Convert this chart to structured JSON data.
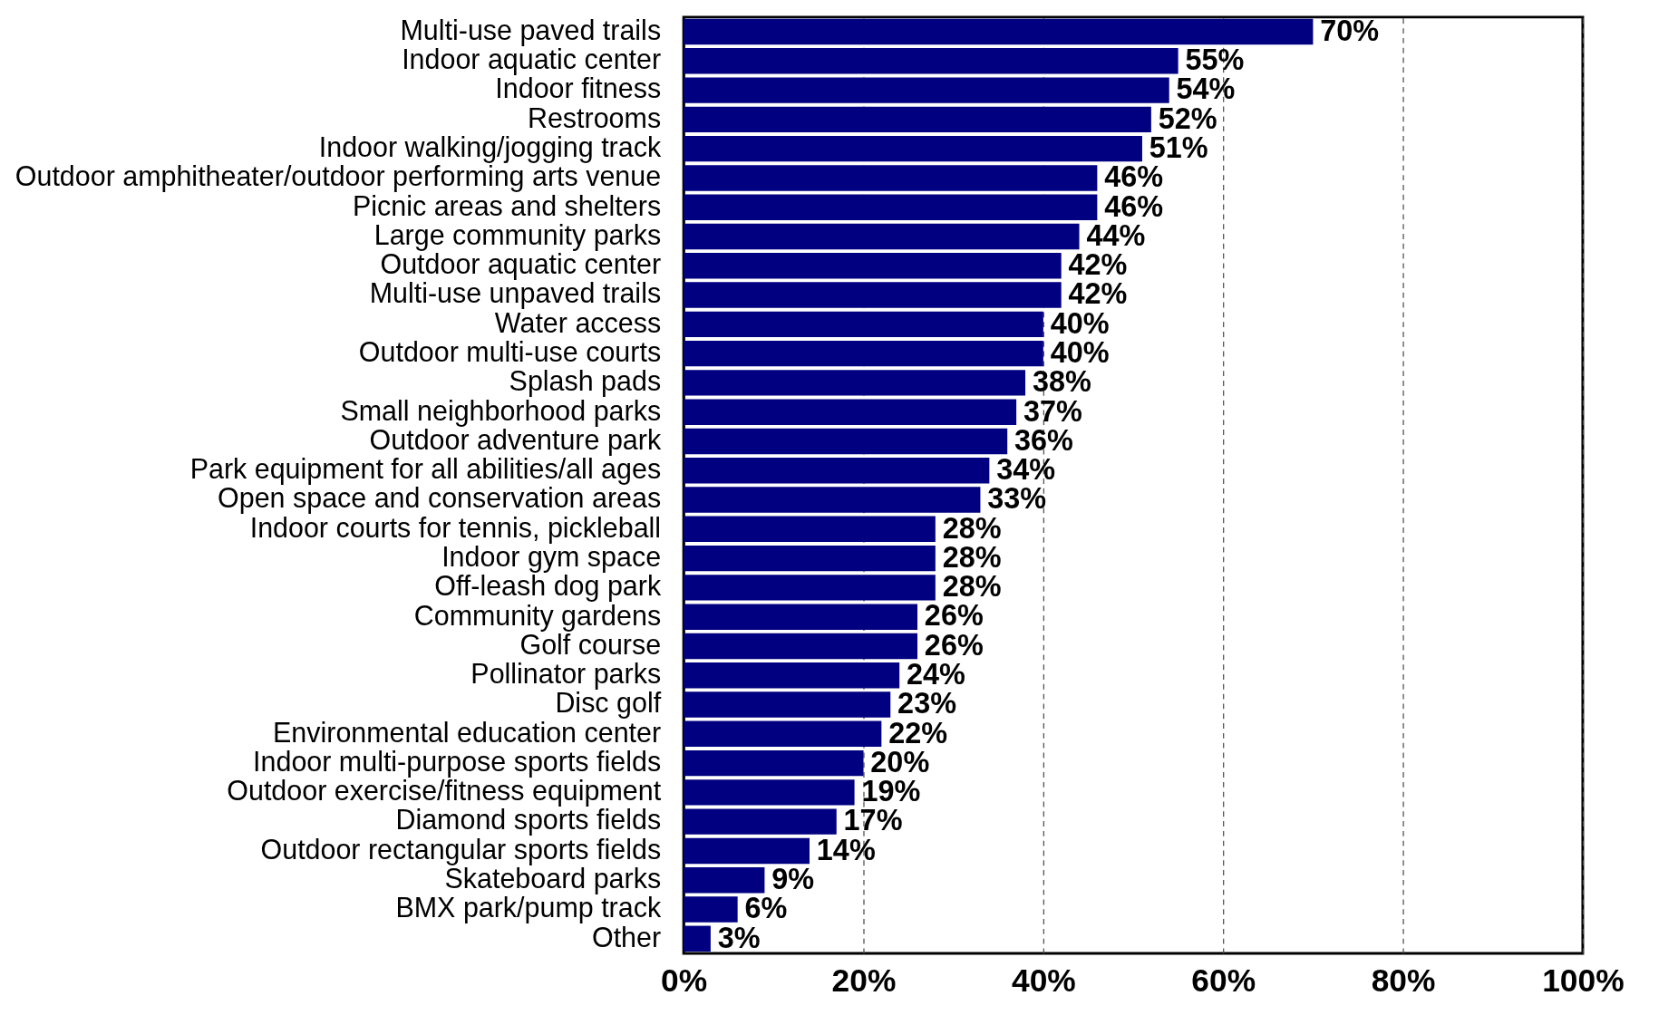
{
  "chart_data": {
    "type": "bar",
    "orientation": "horizontal",
    "categories": [
      "Multi-use paved trails",
      "Indoor aquatic center",
      "Indoor fitness",
      "Restrooms",
      "Indoor walking/jogging track",
      "Outdoor amphitheater/outdoor performing arts venue",
      "Picnic areas and shelters",
      "Large community parks",
      "Outdoor aquatic center",
      "Multi-use unpaved trails",
      "Water access",
      "Outdoor multi-use courts",
      "Splash pads",
      "Small neighborhood parks",
      "Outdoor adventure park",
      "Park equipment for all abilities/all ages",
      "Open space and conservation areas",
      "Indoor courts for tennis, pickleball",
      "Indoor gym space",
      "Off-leash dog park",
      "Community gardens",
      "Golf course",
      "Pollinator parks",
      "Disc golf",
      "Environmental education center",
      "Indoor multi-purpose sports fields",
      "Outdoor exercise/fitness equipment",
      "Diamond sports fields",
      "Outdoor rectangular sports fields",
      "Skateboard parks",
      "BMX park/pump track",
      "Other"
    ],
    "values": [
      70,
      55,
      54,
      52,
      51,
      46,
      46,
      44,
      42,
      42,
      40,
      40,
      38,
      37,
      36,
      34,
      33,
      28,
      28,
      28,
      26,
      26,
      24,
      23,
      22,
      20,
      19,
      17,
      14,
      9,
      6,
      3
    ],
    "value_labels": [
      "70%",
      "55%",
      "54%",
      "52%",
      "51%",
      "46%",
      "46%",
      "44%",
      "42%",
      "42%",
      "40%",
      "40%",
      "38%",
      "37%",
      "36%",
      "34%",
      "33%",
      "28%",
      "28%",
      "28%",
      "26%",
      "26%",
      "24%",
      "23%",
      "22%",
      "20%",
      "19%",
      "17%",
      "14%",
      "9%",
      "6%",
      "3%"
    ],
    "color": "#000080",
    "xlim": [
      0,
      100
    ],
    "xticks": [
      {
        "value": 0,
        "label": "0%"
      },
      {
        "value": 20,
        "label": "20%"
      },
      {
        "value": 40,
        "label": "40%"
      },
      {
        "value": 60,
        "label": "60%"
      },
      {
        "value": 80,
        "label": "80%"
      },
      {
        "value": 100,
        "label": "100%"
      }
    ],
    "grid": "x"
  }
}
